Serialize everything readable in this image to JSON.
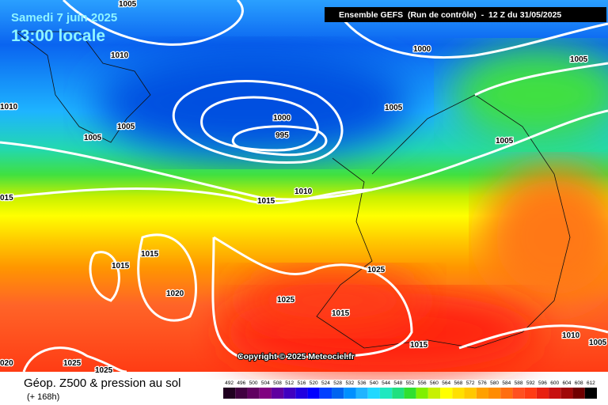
{
  "header": {
    "date": "Samedi 7 juin 2025",
    "time": "13:00 locale",
    "model": "Ensemble GEFS  (Run de contrôle)  -  12 Z du 31/05/2025"
  },
  "isobar_labels": [
    "1005",
    "1010",
    "1000",
    "1005",
    "1010",
    "1005",
    "1000",
    "995",
    "1005",
    "1005",
    "1005",
    "1010",
    "1015",
    "015",
    "1015",
    "1015",
    "1025",
    "1020",
    "1025",
    "1015",
    "1010",
    "1005",
    "1015",
    "020",
    "1025",
    "1025"
  ],
  "copyright": "Copyright © 2025 Meteociel.fr",
  "footer": {
    "title": "Géop. Z500 & pression au sol",
    "lead": "(+ 168h)"
  },
  "scale": {
    "values": [
      492,
      496,
      500,
      504,
      508,
      512,
      516,
      520,
      524,
      528,
      532,
      536,
      540,
      544,
      548,
      552,
      556,
      560,
      564,
      568,
      572,
      576,
      580,
      584,
      588,
      592,
      596,
      600,
      604,
      608,
      612
    ],
    "colors": [
      "#200020",
      "#400040",
      "#600060",
      "#800080",
      "#6000a0",
      "#4000c0",
      "#2000e0",
      "#0000ff",
      "#0040ff",
      "#0064f0",
      "#0090ff",
      "#20b4ff",
      "#20d8ff",
      "#20e8c0",
      "#20e080",
      "#30e030",
      "#80f000",
      "#c8f000",
      "#ffff00",
      "#ffe000",
      "#ffc800",
      "#ffa000",
      "#ff8c00",
      "#ff6e10",
      "#ff5020",
      "#ff3c14",
      "#e82010",
      "#c81010",
      "#a00808",
      "#700000",
      "#000000"
    ]
  }
}
